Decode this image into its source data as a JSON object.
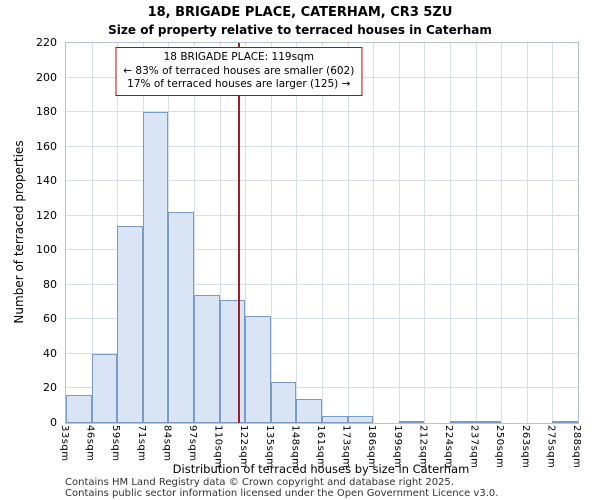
{
  "page": {
    "title": "18, BRIGADE PLACE, CATERHAM, CR3 5ZU",
    "subtitle": "Size of property relative to terraced houses in Caterham",
    "footer_line1": "Contains HM Land Registry data © Crown copyright and database right 2025.",
    "footer_line2": "Contains public sector information licensed under the Open Government Licence v3.0."
  },
  "chart_data": {
    "type": "bar",
    "title": "18, BRIGADE PLACE, CATERHAM, CR3 5ZU",
    "subtitle": "Size of property relative to terraced houses in Caterham",
    "categories": [
      "33sqm",
      "46sqm",
      "59sqm",
      "71sqm",
      "84sqm",
      "97sqm",
      "110sqm",
      "122sqm",
      "135sqm",
      "148sqm",
      "161sqm",
      "173sqm",
      "186sqm",
      "199sqm",
      "212sqm",
      "224sqm",
      "237sqm",
      "250sqm",
      "263sqm",
      "275sqm",
      "288sqm"
    ],
    "bin_edges": [
      33,
      46,
      59,
      71,
      84,
      97,
      110,
      122,
      135,
      148,
      161,
      173,
      186,
      199,
      212,
      224,
      237,
      250,
      263,
      275,
      288
    ],
    "values": [
      16,
      40,
      114,
      180,
      122,
      74,
      71,
      62,
      24,
      14,
      4,
      4,
      0,
      1,
      0,
      1,
      1,
      0,
      0,
      1
    ],
    "xlabel": "Distribution of terraced houses by size in Caterham",
    "ylabel": "Number of terraced properties",
    "ylim": [
      0,
      220
    ],
    "yticks": [
      0,
      20,
      40,
      60,
      80,
      100,
      120,
      140,
      160,
      180,
      200,
      220
    ],
    "grid": true,
    "legend": "none",
    "bar_fill": "#d9e4f5",
    "bar_border": "#7a9ac8",
    "grid_color": "#d7deec",
    "marker": {
      "value_sqm": 119,
      "line_color": "#a51c24",
      "box_border": "#cc0000",
      "annotation": [
        "18 BRIGADE PLACE: 119sqm",
        "← 83% of terraced houses are smaller (602)",
        "17% of terraced houses are larger (125) →"
      ],
      "smaller_pct": 83,
      "smaller_count": 602,
      "larger_pct": 17,
      "larger_count": 125
    }
  }
}
